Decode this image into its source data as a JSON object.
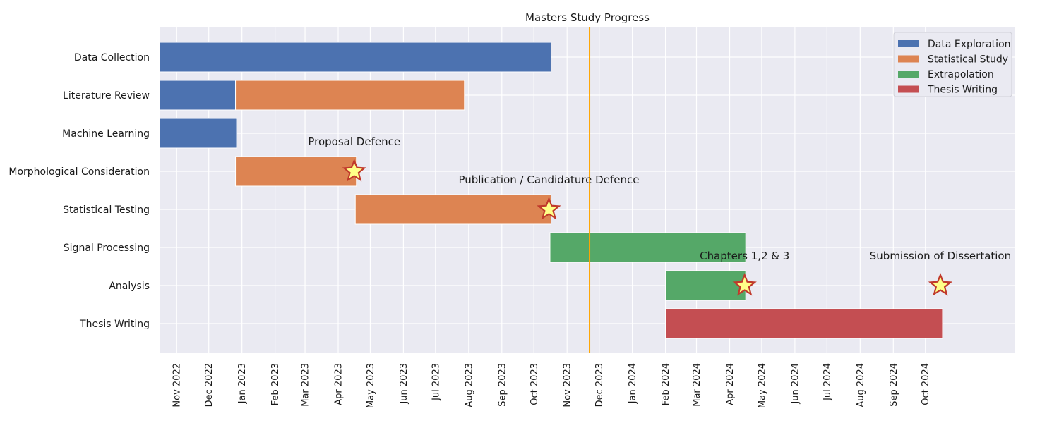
{
  "chart_data": {
    "type": "gantt",
    "title": "Masters Study Progress",
    "xlim": [
      "2022-10-16",
      "2024-12-24"
    ],
    "x_ticks": [
      "Nov 2022",
      "Dec 2022",
      "Jan 2023",
      "Feb 2023",
      "Mar 2023",
      "Apr 2023",
      "May 2023",
      "Jun 2023",
      "Jul 2023",
      "Aug 2023",
      "Sep 2023",
      "Oct 2023",
      "Nov 2023",
      "Dec 2023",
      "Jan 2024",
      "Feb 2024",
      "Mar 2024",
      "Apr 2024",
      "May 2024",
      "Jun 2024",
      "Jul 2024",
      "Aug 2024",
      "Sep 2024",
      "Oct 2024"
    ],
    "tasks": [
      "Data Collection",
      "Literature Review",
      "Machine Learning",
      "Morphological Consideration",
      "Statistical Testing",
      "Signal Processing",
      "Analysis",
      "Thesis Writing"
    ],
    "categories": [
      {
        "name": "Data Exploration",
        "color": "#4c72b0"
      },
      {
        "name": "Statistical Study",
        "color": "#dd8452"
      },
      {
        "name": "Extrapolation",
        "color": "#55a868"
      },
      {
        "name": "Thesis Writing",
        "color": "#c44e52"
      }
    ],
    "bars": [
      {
        "task": "Data Collection",
        "category": "Data Exploration",
        "start": "2022-10-16",
        "end": "2023-10-17"
      },
      {
        "task": "Literature Review",
        "category": "Data Exploration",
        "start": "2022-10-16",
        "end": "2022-12-26"
      },
      {
        "task": "Literature Review",
        "category": "Statistical Study",
        "start": "2022-12-26",
        "end": "2023-07-28"
      },
      {
        "task": "Machine Learning",
        "category": "Data Exploration",
        "start": "2022-10-16",
        "end": "2022-12-27"
      },
      {
        "task": "Morphological Consideration",
        "category": "Statistical Study",
        "start": "2022-12-26",
        "end": "2023-04-18"
      },
      {
        "task": "Statistical Testing",
        "category": "Statistical Study",
        "start": "2023-04-17",
        "end": "2023-10-17"
      },
      {
        "task": "Signal Processing",
        "category": "Extrapolation",
        "start": "2023-10-16",
        "end": "2024-04-16"
      },
      {
        "task": "Analysis",
        "category": "Extrapolation",
        "start": "2024-02-01",
        "end": "2024-04-16"
      },
      {
        "task": "Thesis Writing",
        "category": "Thesis Writing",
        "start": "2024-02-01",
        "end": "2024-10-17"
      }
    ],
    "milestones": [
      {
        "label": "Proposal Defence",
        "date": "2023-04-16",
        "task": "Morphological Consideration"
      },
      {
        "label": "Publication / Candidature Defence",
        "date": "2023-10-15",
        "task": "Statistical Testing"
      },
      {
        "label": "Chapters 1,2 & 3",
        "date": "2024-04-15",
        "task": "Analysis"
      },
      {
        "label": "Submission of Dissertation",
        "date": "2024-10-15",
        "task": "Analysis"
      }
    ],
    "today_line": {
      "date": "2023-11-22",
      "color": "#ffa500"
    },
    "legend_position": "top-right",
    "grid": true,
    "style": {
      "plot_bg": "#eaeaf2",
      "grid_color": "#ffffff",
      "star_fill": "#ffff88",
      "star_edge": "#c0392b"
    }
  }
}
